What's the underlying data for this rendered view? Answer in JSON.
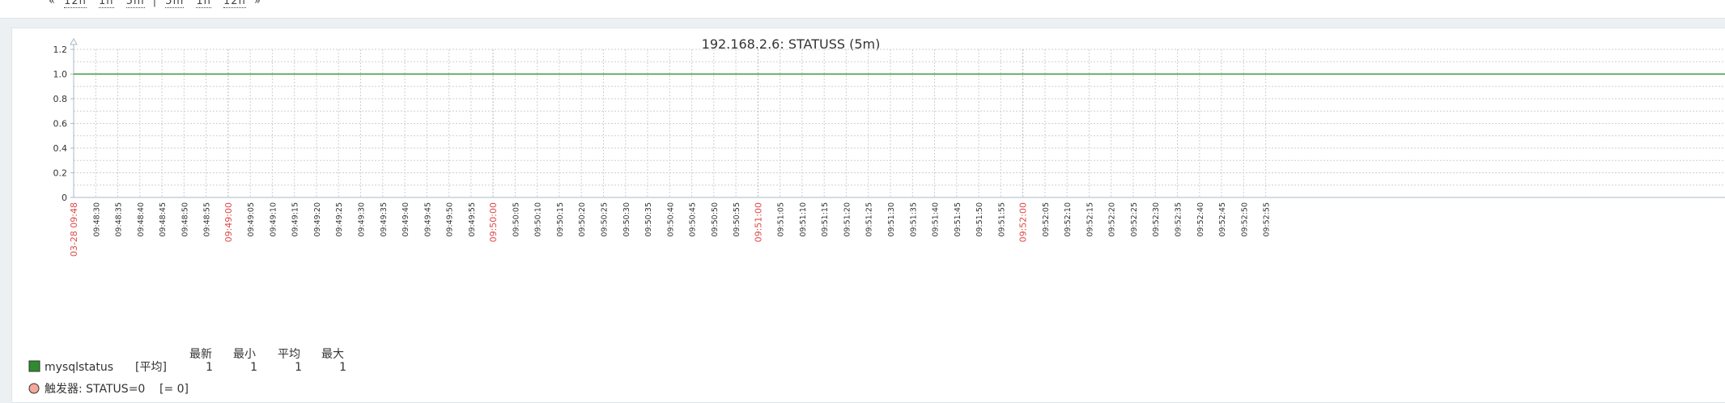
{
  "nav": {
    "open": "«",
    "prev_links": [
      "12h",
      "1h",
      "5m"
    ],
    "next_links": [
      "5m",
      "1h",
      "12h"
    ],
    "close": "»"
  },
  "chart_data": {
    "type": "line",
    "title": "192.168.2.6: STATUSS (5m)",
    "xlabel": "",
    "ylabel": "",
    "y_ticks": [
      "0",
      "0.2",
      "0.4",
      "0.6",
      "0.8",
      "1.0",
      "1.2"
    ],
    "ylim": [
      0,
      1.2
    ],
    "x_tick_labels": [
      "03-28 09:48",
      "09:48:30",
      "09:48:35",
      "09:48:40",
      "09:48:45",
      "09:48:50",
      "09:48:55",
      "09:49:00",
      "09:49:05",
      "09:49:10",
      "09:49:15",
      "09:49:20",
      "09:49:25",
      "09:49:30",
      "09:49:35",
      "09:49:40",
      "09:49:45",
      "09:49:50",
      "09:49:55",
      "09:50:00",
      "09:50:05",
      "09:50:10",
      "09:50:15",
      "09:50:20",
      "09:50:25",
      "09:50:30",
      "09:50:35",
      "09:50:40",
      "09:50:45",
      "09:50:50",
      "09:50:55",
      "09:51:00",
      "09:51:05",
      "09:51:10",
      "09:51:15",
      "09:51:20",
      "09:51:25",
      "09:51:30",
      "09:51:35",
      "09:51:40",
      "09:51:45",
      "09:51:50",
      "09:51:55",
      "09:52:00",
      "09:52:05",
      "09:52:10",
      "09:52:15",
      "09:52:20",
      "09:52:25",
      "09:52:30",
      "09:52:35",
      "09:52:40",
      "09:52:45",
      "09:52:50",
      "09:52:55"
    ],
    "highlighted_ticks": [
      "03-28 09:48",
      "09:49:00",
      "09:50:00",
      "09:51:00",
      "09:52:00"
    ],
    "series": [
      {
        "name": "mysqlstatus",
        "values": [
          1,
          1
        ],
        "color": "#1a8a1a"
      }
    ],
    "grid": true
  },
  "legend": {
    "headers": [
      "最新",
      "最小",
      "平均",
      "最大"
    ],
    "items": [
      {
        "name": "mysqlstatus",
        "func": "[平均]",
        "last": "1",
        "min": "1",
        "avg": "1",
        "max": "1",
        "color": "#2e8b2e"
      }
    ],
    "trigger": {
      "label": "触发器: STATUS=0",
      "condition": "[= 0]",
      "color": "#f4a79a"
    }
  },
  "colors": {
    "highlight": "#e04848",
    "axis_text": "#333333",
    "grid": "#cfcfcf",
    "axis": "#a9b8c8"
  }
}
